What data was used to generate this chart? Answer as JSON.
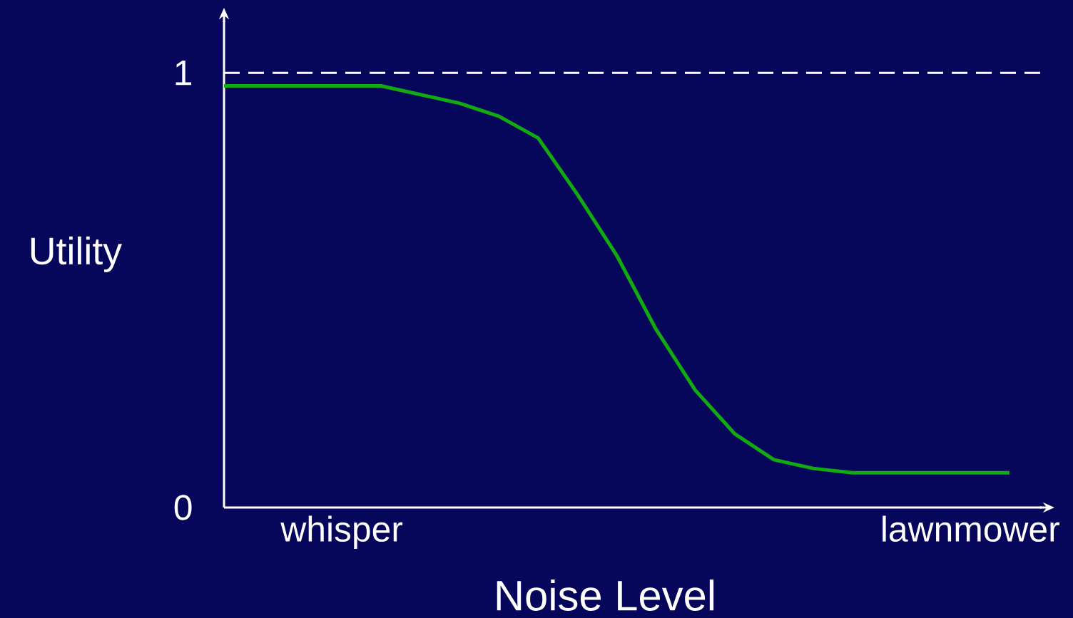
{
  "chart_data": {
    "type": "line",
    "xlabel": "Noise Level",
    "ylabel": "Utility",
    "categories": [
      null,
      null,
      null,
      "whisper",
      null,
      null,
      null,
      null,
      null,
      null,
      null,
      null,
      null,
      null,
      null,
      null,
      null,
      null,
      null,
      "lawnmower",
      null
    ],
    "series": [
      {
        "color": "#11aa11",
        "values": [
          0.97,
          0.97,
          0.97,
          0.97,
          0.97,
          0.95,
          0.93,
          0.9,
          0.85,
          0.72,
          0.58,
          0.41,
          0.27,
          0.17,
          0.11,
          0.09,
          0.08,
          0.08,
          0.08,
          0.08,
          0.08
        ]
      }
    ],
    "ylim": [
      0,
      1.12
    ],
    "yticks": [
      0,
      1
    ],
    "ref_lines": [
      {
        "axis": "y",
        "value": 1,
        "color": "#ffffff",
        "line_style": "dashed"
      }
    ]
  }
}
